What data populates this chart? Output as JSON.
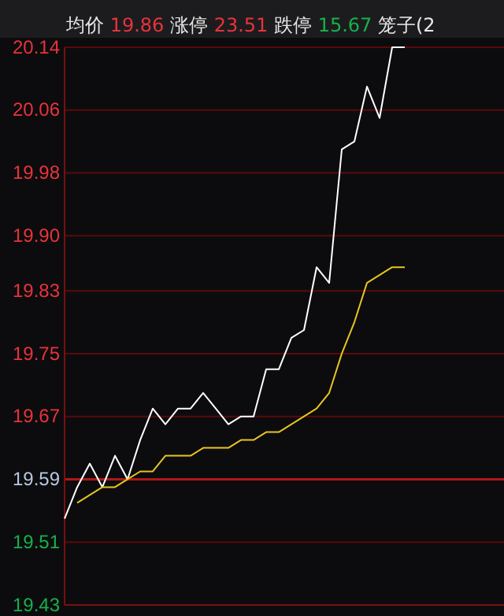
{
  "chart_data": {
    "type": "line",
    "categories": [
      null,
      null,
      null,
      null,
      null,
      null,
      null,
      null,
      null,
      null,
      null,
      null,
      null,
      null,
      null,
      null,
      null,
      null,
      null,
      null,
      null,
      null,
      null,
      null,
      null,
      null,
      null,
      null,
      null,
      null,
      null,
      null,
      null,
      null,
      null,
      null
    ],
    "series": [
      {
        "color": "#ffffff",
        "values": [
          19.54,
          19.58,
          19.61,
          19.58,
          19.62,
          19.59,
          19.64,
          19.68,
          19.66,
          19.68,
          19.68,
          19.7,
          19.68,
          19.66,
          19.67,
          19.67,
          19.73,
          19.73,
          19.77,
          19.78,
          19.86,
          19.84,
          20.01,
          20.02,
          20.09,
          20.05,
          20.14,
          20.14,
          null,
          null,
          null,
          null,
          null,
          null,
          null,
          null
        ]
      },
      {
        "color": "#e8c520",
        "values": [
          null,
          19.56,
          19.57,
          19.58,
          19.58,
          19.59,
          19.6,
          19.6,
          19.62,
          19.62,
          19.62,
          19.63,
          19.63,
          19.63,
          19.64,
          19.64,
          19.65,
          19.65,
          19.66,
          19.67,
          19.68,
          19.7,
          19.75,
          19.79,
          19.84,
          19.85,
          19.86,
          19.86,
          null,
          null,
          null,
          null,
          null,
          null,
          null,
          null
        ]
      }
    ],
    "ylim": [
      19.43,
      20.14
    ],
    "yticks": [
      19.43,
      19.51,
      19.59,
      19.67,
      19.75,
      19.83,
      {
        "value": 19.9,
        "label": "19.90"
      },
      19.98,
      20.06,
      20.14
    ],
    "grid": "y",
    "marker": "none",
    "line_style": "solid",
    "ref_lines": [
      {
        "axis": "y",
        "value": 19.59,
        "color": "#b01818"
      }
    ],
    "annotations": [
      "均价 19.86",
      "涨停 23.51",
      "跌停 15.67",
      "笼子(2"
    ]
  }
}
